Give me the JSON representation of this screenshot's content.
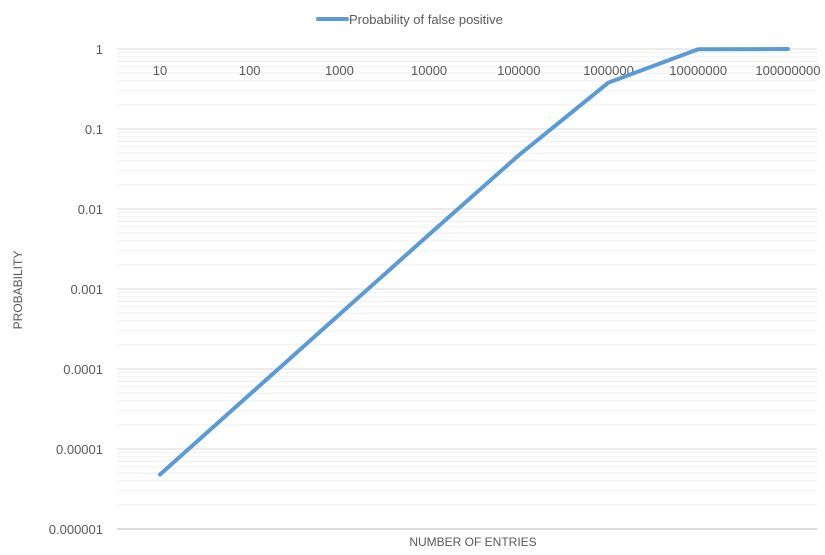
{
  "chart_data": {
    "type": "line",
    "title": "",
    "xlabel": "NUMBER OF ENTRIES",
    "ylabel": "PROBABILITY",
    "categories": [
      "10",
      "100",
      "1000",
      "10000",
      "100000",
      "1000000",
      "10000000",
      "100000000"
    ],
    "series": [
      {
        "name": "Probability of false positive",
        "color": "#5b9bd5",
        "values": [
          4.8e-06,
          4.8e-05,
          0.00048,
          0.0048,
          0.047,
          0.38,
          0.99,
          1.0
        ]
      }
    ],
    "y_axis": {
      "scale": "log",
      "ylim": [
        1e-06,
        1
      ],
      "tick_labels": [
        "1",
        "0.1",
        "0.01",
        "0.001",
        "0.0001",
        "0.00001",
        "0.000001"
      ]
    },
    "x_axis_position": "top",
    "grid": true,
    "legend_position": "top"
  }
}
